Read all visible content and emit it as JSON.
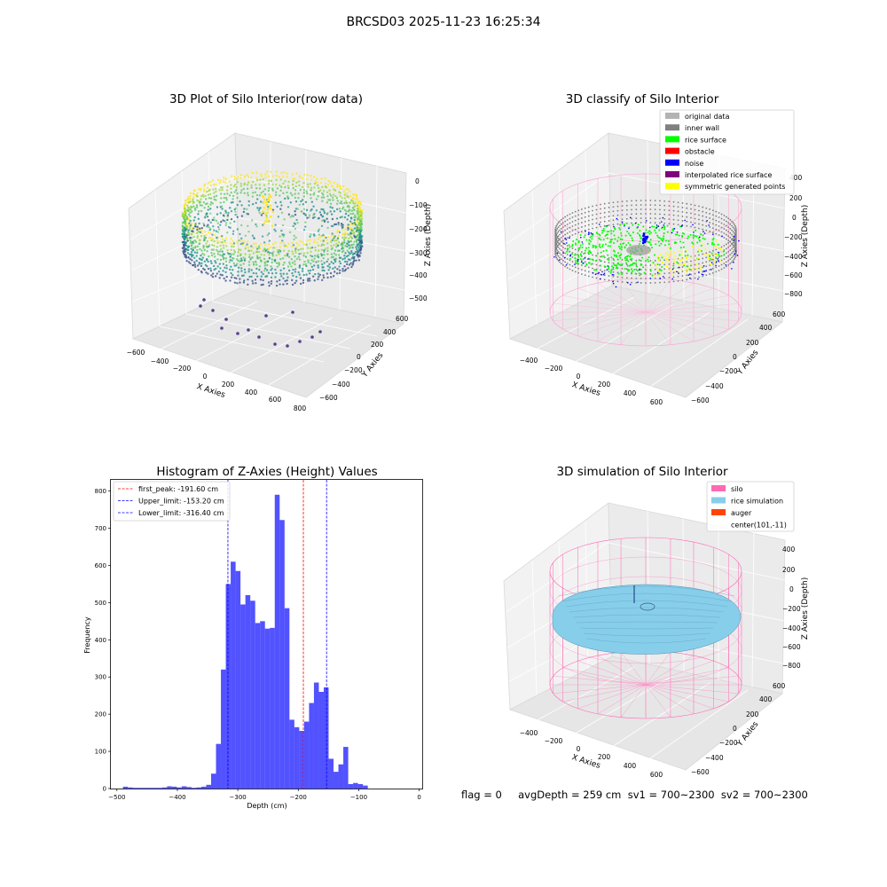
{
  "figure": {
    "suptitle": "BRCSD03 2025-11-23 16:25:34",
    "footer": "flag = 0     avgDepth = 259 cm  sv1 = 700~2300  sv2 = 700~2300"
  },
  "panels": {
    "raw": {
      "title": "3D Plot of Silo Interior(row data)",
      "xlabel": "X Axies",
      "ylabel": "Y Axies",
      "zlabel": "Z Axies (Depth)",
      "xticks": [
        "−600",
        "−400",
        "−200",
        "0",
        "200",
        "400",
        "600",
        "800"
      ],
      "yticks": [
        "−600",
        "−400",
        "−200",
        "0",
        "200",
        "400",
        "600"
      ],
      "zticks": [
        "0",
        "−100",
        "−200",
        "−300",
        "−400",
        "−500"
      ]
    },
    "classify": {
      "title": "3D classify of Silo Interior",
      "xlabel": "X Axies",
      "ylabel": "Y Axies",
      "zlabel": "Z Axies (Depth)",
      "xticks": [
        "−400",
        "−200",
        "0",
        "200",
        "400",
        "600"
      ],
      "yticks": [
        "−600",
        "−400",
        "−200",
        "0",
        "200",
        "400",
        "600"
      ],
      "zticks": [
        "200",
        "0",
        "−200",
        "−400",
        "−600",
        "−800"
      ],
      "zticks_top": "400",
      "legend": [
        {
          "label": "original data",
          "color": "#b3b3b3"
        },
        {
          "label": "inner wall",
          "color": "#808080"
        },
        {
          "label": "rice surface",
          "color": "#00ff00"
        },
        {
          "label": "obstacle",
          "color": "#ff0000"
        },
        {
          "label": "noise",
          "color": "#0000ff"
        },
        {
          "label": "interpolated rice surface",
          "color": "#800080"
        },
        {
          "label": "symmetric generated points",
          "color": "#ffff00"
        }
      ]
    },
    "simulation": {
      "title": "3D simulation of Silo Interior",
      "xlabel": "X Axies",
      "ylabel": "Y Axies",
      "zlabel": "Z Axies (Depth)",
      "xticks": [
        "−400",
        "−200",
        "0",
        "200",
        "400",
        "600"
      ],
      "yticks": [
        "−600",
        "−400",
        "−200",
        "0",
        "200",
        "400",
        "600"
      ],
      "zticks": [
        "400",
        "200",
        "0",
        "−200",
        "−400",
        "−600",
        "−800"
      ],
      "legend": [
        {
          "label": "silo",
          "color": "#ff69b4"
        },
        {
          "label": "rice simulation",
          "color": "#87ceeb"
        },
        {
          "label": "auger",
          "color": "#ff4500"
        },
        {
          "label": "center(101,-11)",
          "color": "none"
        }
      ]
    }
  },
  "chart_data": {
    "type": "bar",
    "title": "Histogram of Z-Axies (Height) Values",
    "xlabel": "Depth (cm)",
    "ylabel": "Frequency",
    "xlim": [
      -510,
      5
    ],
    "ylim": [
      0,
      830
    ],
    "xticks": [
      -500,
      -400,
      -300,
      -200,
      -100,
      0
    ],
    "yticks": [
      0,
      100,
      200,
      300,
      400,
      500,
      600,
      700,
      800
    ],
    "bin_width": 8.1,
    "bin_start": -490,
    "values": [
      5,
      3,
      2,
      2,
      2,
      2,
      2,
      2,
      3,
      6,
      5,
      3,
      6,
      4,
      2,
      3,
      5,
      10,
      40,
      120,
      320,
      550,
      610,
      585,
      495,
      520,
      505,
      445,
      450,
      430,
      432,
      790,
      722,
      485,
      185,
      165,
      155,
      180,
      230,
      285,
      260,
      272,
      80,
      45,
      65,
      112,
      12,
      15,
      12,
      8
    ],
    "color": "#0000ff",
    "vlines": [
      {
        "label": "first_peak: -191.60 cm",
        "x": -191.6,
        "color": "#ff0000"
      },
      {
        "label": "Upper_limit: -153.20 cm",
        "x": -153.2,
        "color": "#0000ff"
      },
      {
        "label": "Lower_limit: -316.40 cm",
        "x": -316.4,
        "color": "#0000ff"
      }
    ],
    "legend_position": "top-left"
  }
}
